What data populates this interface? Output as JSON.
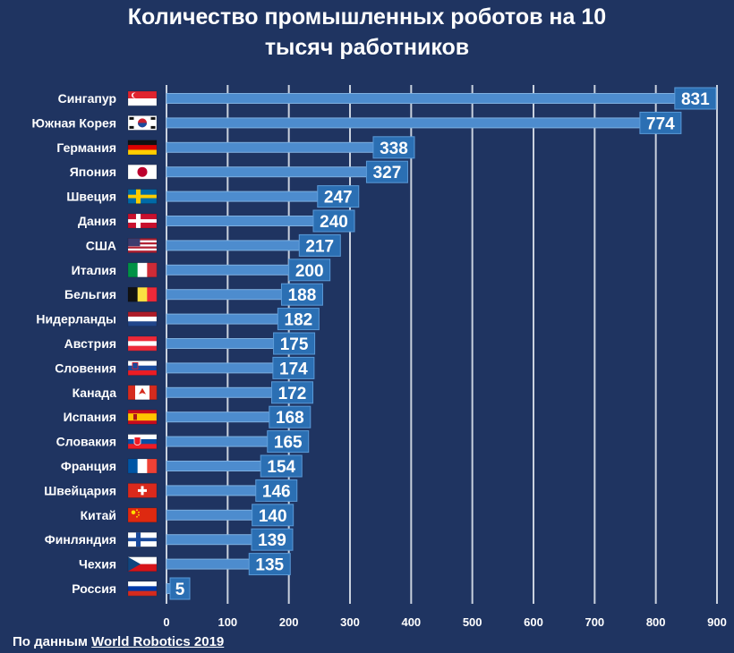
{
  "chart_data": {
    "type": "bar",
    "orientation": "horizontal",
    "title_line1": "Количество промышленных роботов на 10",
    "title_line2": "тысяч работников",
    "categories": [
      "Сингапур",
      "Южная Корея",
      "Германия",
      "Япония",
      "Швеция",
      "Дания",
      "США",
      "Италия",
      "Бельгия",
      "Нидерланды",
      "Австрия",
      "Словения",
      "Канада",
      "Испания",
      "Словакия",
      "Франция",
      "Швейцария",
      "Китай",
      "Финляндия",
      "Чехия",
      "Россия"
    ],
    "values": [
      831,
      774,
      338,
      327,
      247,
      240,
      217,
      200,
      188,
      182,
      175,
      174,
      172,
      168,
      165,
      154,
      146,
      140,
      139,
      135,
      5
    ],
    "xlim": [
      0,
      900
    ],
    "x_ticks": [
      0,
      100,
      200,
      300,
      400,
      500,
      600,
      700,
      800,
      900
    ],
    "grid": "vertical",
    "value_labels": true,
    "flags": [
      "singapore-flag",
      "south-korea-flag",
      "germany-flag",
      "japan-flag",
      "sweden-flag",
      "denmark-flag",
      "usa-flag",
      "italy-flag",
      "belgium-flag",
      "netherlands-flag",
      "austria-flag",
      "slovenia-flag",
      "canada-flag",
      "spain-flag",
      "slovakia-flag",
      "france-flag",
      "switzerland-flag",
      "china-flag",
      "finland-flag",
      "czechia-flag",
      "russia-flag"
    ]
  },
  "source": {
    "prefix": "По данным ",
    "link": "World Robotics 2019"
  },
  "colors": {
    "background": "#1f3461",
    "bar": "#4d8cce",
    "label_box": "#2b6fb3",
    "grid": "#c9d1de"
  }
}
